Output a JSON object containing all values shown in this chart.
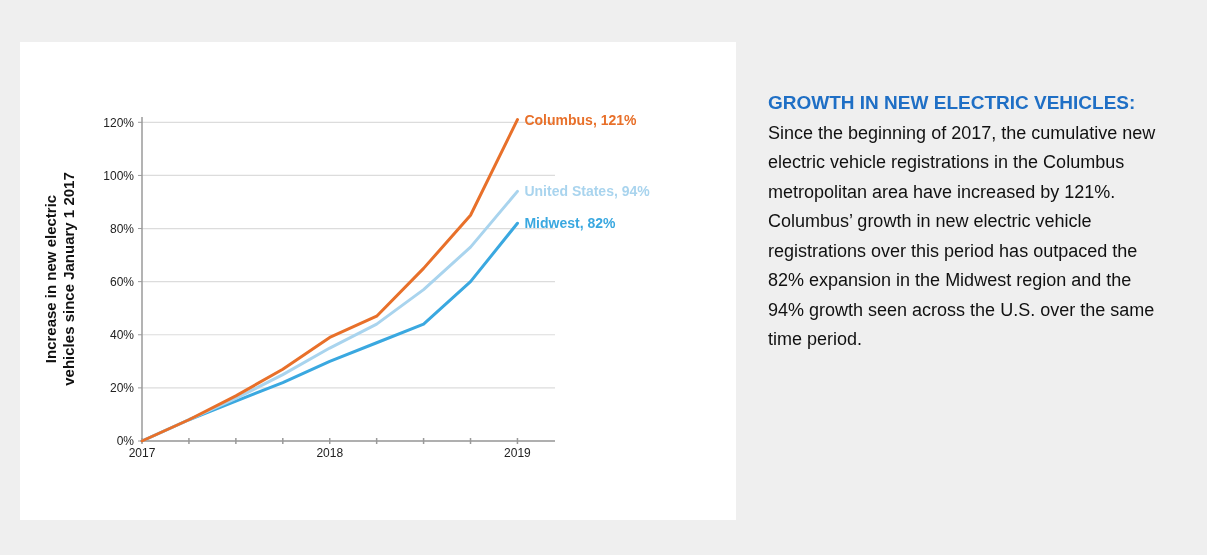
{
  "chart_data": {
    "type": "line",
    "title": "GROWTH IN NEW ELECTRIC VEHICLES:",
    "subtitle": "Since the beginning of 2017, the cumulative new electric vehicle registrations in the Columbus metropolitan area have increased by 121%. Columbus’ growth in new electric vehicle registrations over this period has outpaced the 82% expansion in the Midwest region and the 94% growth seen across the U.S. over the same time period.",
    "ylabel": "Increase in new electric vehicles since January 1 2017",
    "x": [
      2017,
      2017.25,
      2017.5,
      2017.75,
      2018,
      2018.25,
      2018.5,
      2018.75,
      2019
    ],
    "xlim": [
      2017,
      2019.2
    ],
    "xticks": [
      2017,
      {
        "value": 2017.25,
        "label": null
      },
      {
        "value": 2017.5,
        "label": null
      },
      {
        "value": 2017.75,
        "label": null
      },
      2018,
      {
        "value": 2018.25,
        "label": null
      },
      {
        "value": 2018.5,
        "label": null
      },
      {
        "value": 2018.75,
        "label": null
      },
      2019
    ],
    "ylim": [
      0,
      122
    ],
    "yticks": [
      {
        "value": 0,
        "label": "0%"
      },
      {
        "value": 20,
        "label": "20%"
      },
      {
        "value": 40,
        "label": "40%"
      },
      {
        "value": 60,
        "label": "60%"
      },
      {
        "value": 80,
        "label": "80%"
      },
      {
        "value": 100,
        "label": "100%"
      },
      {
        "value": 120,
        "label": "120%"
      }
    ],
    "grid": "y",
    "marker": "none",
    "line_style": "solid",
    "series": [
      {
        "color": "#3aa8e0",
        "values": [
          0,
          8,
          15,
          22,
          30,
          37,
          44,
          60,
          82
        ],
        "value_labels": [
          null,
          null,
          null,
          null,
          null,
          null,
          null,
          null,
          "Midwest, 82%"
        ]
      },
      {
        "color": "#a9d4ee",
        "values": [
          0,
          8,
          16,
          25,
          35,
          44,
          57,
          73,
          94
        ],
        "value_labels": [
          null,
          null,
          null,
          null,
          null,
          null,
          null,
          null,
          "United States, 94%"
        ]
      },
      {
        "color": "#e8702a",
        "values": [
          0,
          8,
          17,
          27,
          39,
          47,
          65,
          85,
          121
        ],
        "value_labels": [
          null,
          null,
          null,
          null,
          null,
          null,
          null,
          null,
          "Columbus, 121%"
        ]
      }
    ]
  }
}
